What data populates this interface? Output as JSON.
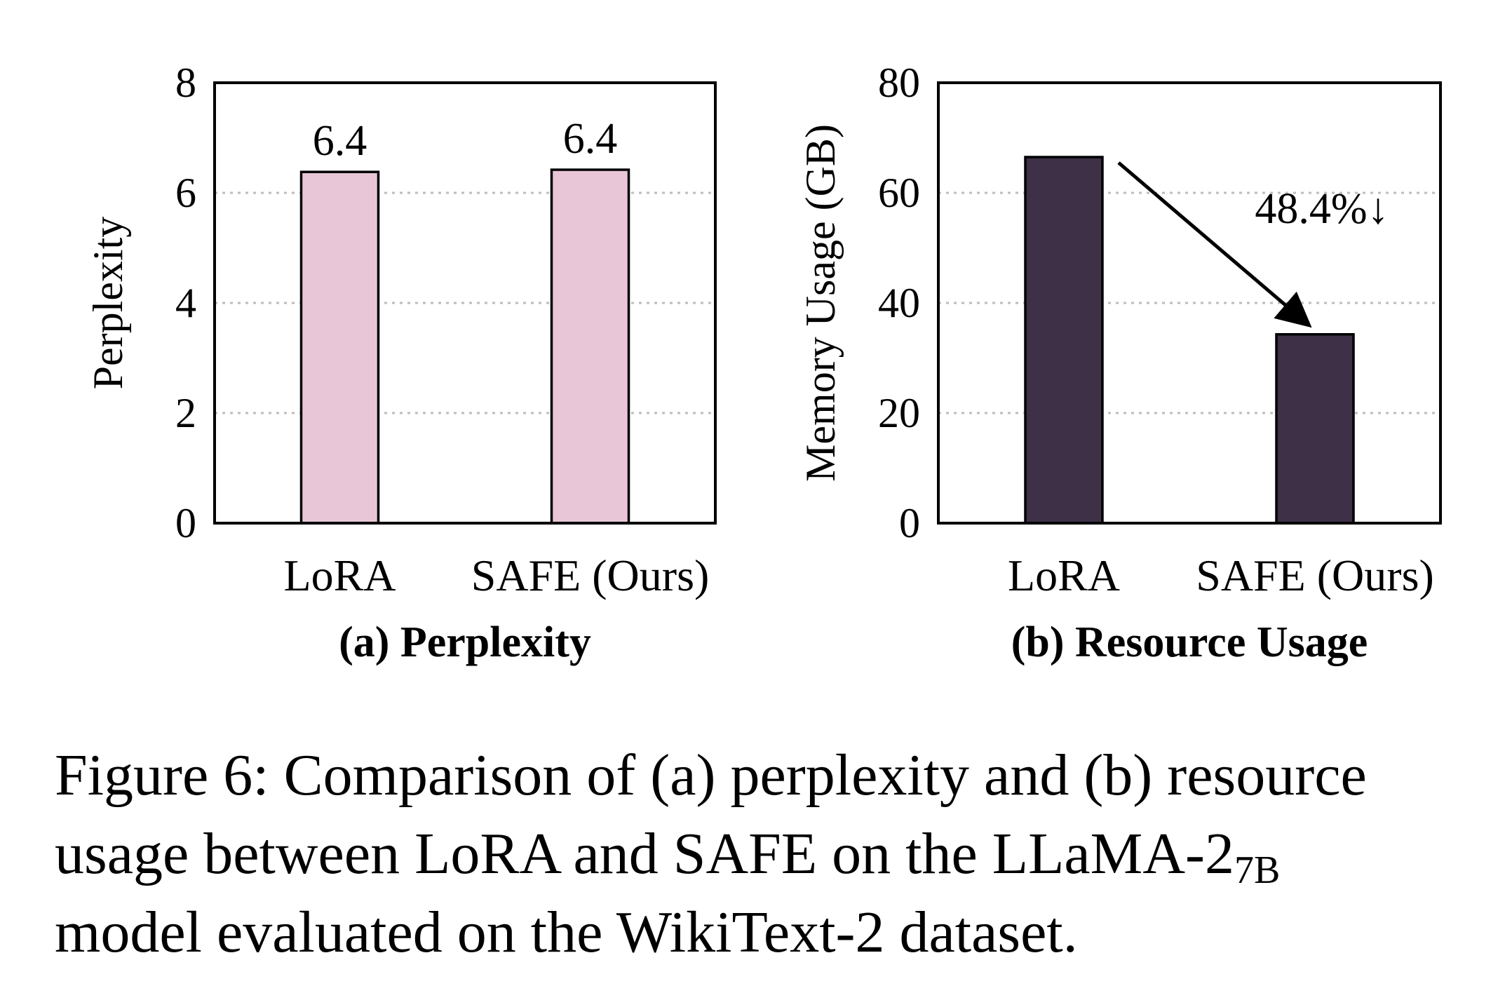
{
  "chart_data": [
    {
      "type": "bar",
      "panel_label": "(a) Perplexity",
      "categories": [
        "LoRA",
        "SAFE (Ours)"
      ],
      "values": [
        6.38,
        6.42
      ],
      "value_labels": [
        "6.4",
        "6.4"
      ],
      "ylabel": "Perplexity",
      "ylim": [
        0,
        8
      ],
      "yticks": [
        0,
        2,
        4,
        6,
        8
      ],
      "grid": "horizontal dotted",
      "bar_color": "#e8c6d7"
    },
    {
      "type": "bar",
      "panel_label": "(b) Resource Usage",
      "categories": [
        "LoRA",
        "SAFE (Ours)"
      ],
      "values": [
        66.5,
        34.3
      ],
      "ylabel": "Memory Usage (GB)",
      "ylim": [
        0,
        80
      ],
      "yticks": [
        0,
        20,
        40,
        60,
        80
      ],
      "grid": "horizontal dotted",
      "bar_color": "#3d3047",
      "annotation": {
        "text": "48.4%↓",
        "arrow_from": "LoRA",
        "arrow_to": "SAFE (Ours)"
      }
    }
  ],
  "caption": {
    "line1": "Figure 6: Comparison of (a) perplexity and (b) resource",
    "line2_main": "usage between LoRA and SAFE on the LLaMA-2",
    "line2_sub": "7B",
    "line3": "model evaluated on the WikiText-2 dataset."
  }
}
